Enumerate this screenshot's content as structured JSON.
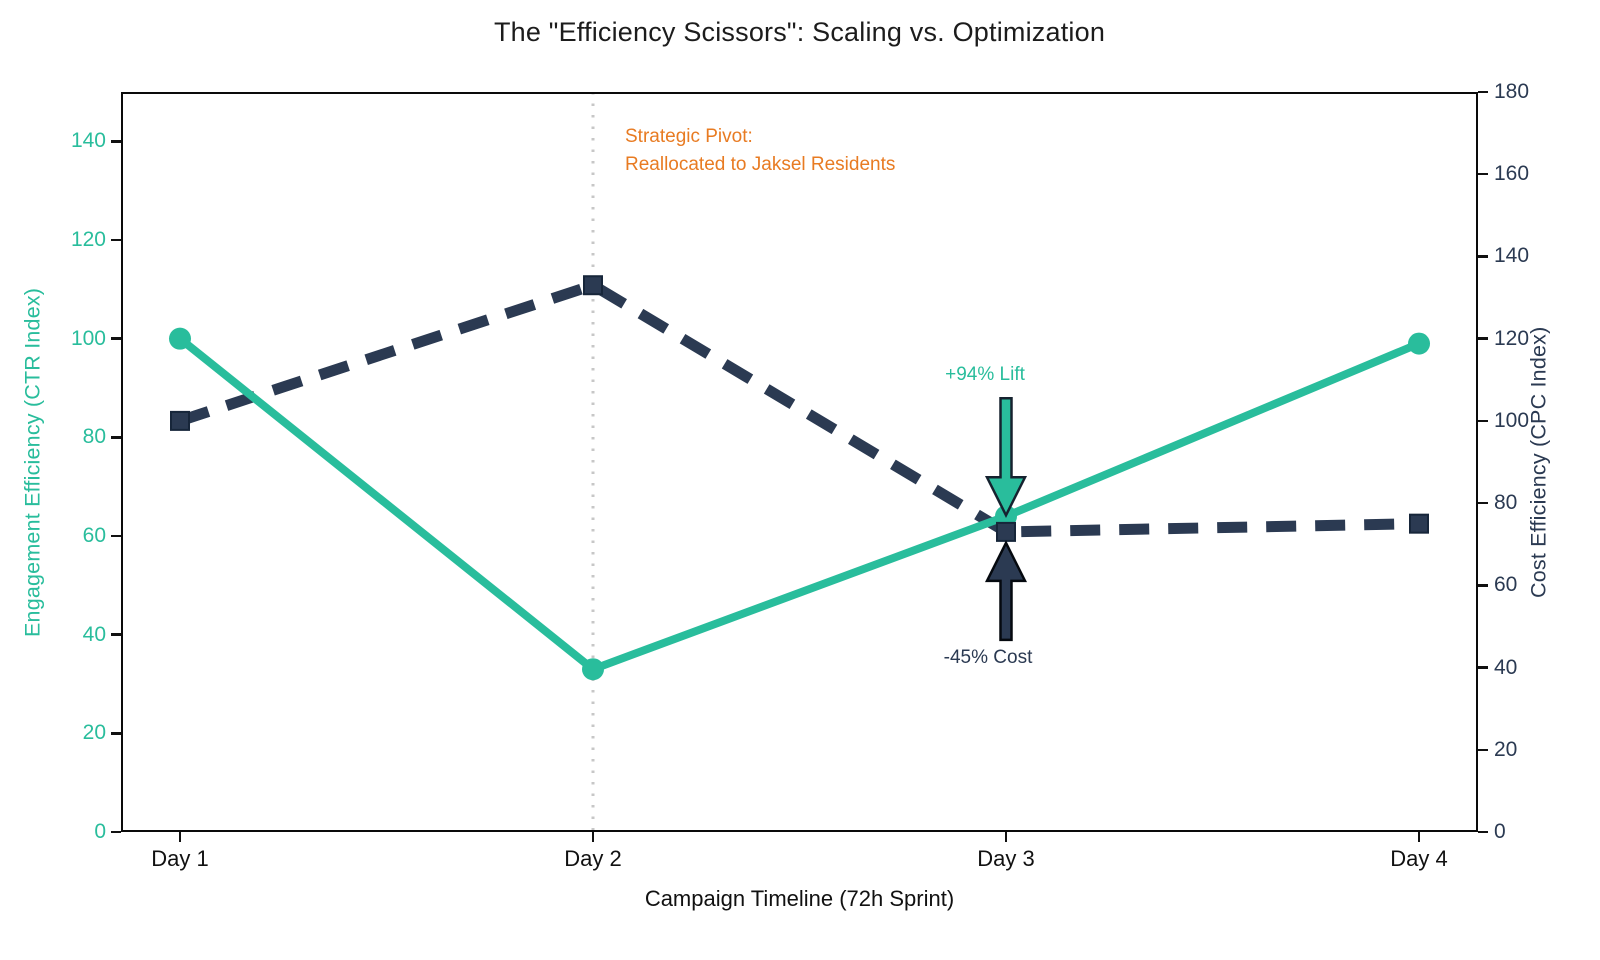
{
  "chart_data": {
    "type": "line",
    "title": "The \"Efficiency Scissors\": Scaling vs. Optimization",
    "xlabel": "Campaign Timeline (72h Sprint)",
    "categories": [
      "Day 1",
      "Day 2",
      "Day 3",
      "Day 4"
    ],
    "grid": false,
    "legend": "none",
    "series": [
      {
        "name": "Engagement Efficiency (CTR Index)",
        "axis": "left",
        "values": [
          100,
          33,
          64,
          99
        ],
        "color": "#29BD9C",
        "line_style": "solid",
        "marker": "circle"
      },
      {
        "name": "Cost Efficiency (CPC Index)",
        "axis": "right",
        "values": [
          100,
          133,
          73,
          75
        ],
        "color": "#2B3A52",
        "line_style": "dashed",
        "marker": "square"
      }
    ],
    "left_axis": {
      "label": "Engagement Efficiency (CTR Index)",
      "lim": [
        0,
        150
      ],
      "ticks": [
        0,
        20,
        40,
        60,
        80,
        100,
        120,
        140
      ],
      "color": "#29BD9C"
    },
    "right_axis": {
      "label": "Cost Efficiency (CPC Index)",
      "lim": [
        0,
        180
      ],
      "ticks": [
        0,
        20,
        40,
        60,
        80,
        100,
        120,
        140,
        160,
        180
      ],
      "color": "#2B3A52"
    },
    "annotations": {
      "pivot": {
        "x_category": "Day 2",
        "line_style": "dotted",
        "line_color": "#C7C7C7",
        "text_line1": "Strategic Pivot:",
        "text_line2": "Reallocated to Jaksel Residents",
        "color": "#E87B22"
      },
      "lift": {
        "label": "+94% Lift",
        "at_category": "Day 3",
        "color": "#29BD9C"
      },
      "cost": {
        "label": "-45% Cost",
        "at_category": "Day 3",
        "color": "#2B3A52"
      }
    }
  }
}
